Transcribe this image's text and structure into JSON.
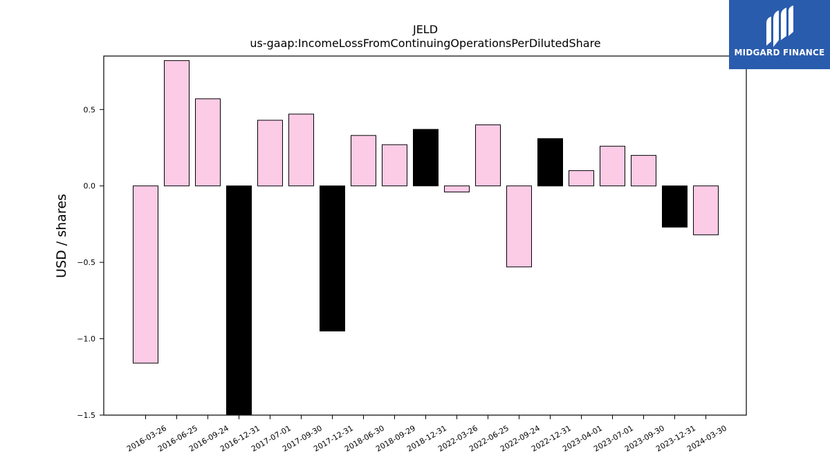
{
  "brand": {
    "name": "MIDGARD FINANCE",
    "background_color": "#2a5cad",
    "text_color": "#ffffff"
  },
  "chart_data": {
    "type": "bar",
    "title": "JELD",
    "subtitle": "us-gaap:IncomeLossFromContinuingOperationsPerDilutedShare",
    "xlabel": "",
    "ylabel": "USD / shares",
    "ylim": [
      -1.5,
      0.85
    ],
    "yticks": [
      {
        "value": 0.5,
        "label": "0.5"
      },
      {
        "value": 0.0,
        "label": "0.0"
      },
      {
        "value": -0.5,
        "label": "−0.5"
      },
      {
        "value": -1.0,
        "label": "−1.0"
      },
      {
        "value": -1.5,
        "label": "−1.5"
      }
    ],
    "grid": false,
    "legend": "none",
    "colors": {
      "quarterly": "#fccbe6",
      "annual": "#000000",
      "edge": "#000000"
    },
    "categories": [
      "2016-03-26",
      "2016-06-25",
      "2016-09-24",
      "2016-12-31",
      "2017-07-01",
      "2017-09-30",
      "2017-12-31",
      "2018-06-30",
      "2018-09-29",
      "2018-12-31",
      "2022-03-26",
      "2022-06-25",
      "2022-09-24",
      "2022-12-31",
      "2023-04-01",
      "2023-07-01",
      "2023-09-30",
      "2023-12-31",
      "2024-03-30"
    ],
    "values": [
      -1.16,
      0.82,
      0.57,
      -1.5,
      0.43,
      0.47,
      -0.95,
      0.33,
      0.27,
      0.37,
      -0.04,
      0.4,
      -0.53,
      0.31,
      0.1,
      0.26,
      0.2,
      -0.27,
      -0.32
    ],
    "highlight": [
      false,
      false,
      false,
      true,
      false,
      false,
      true,
      false,
      false,
      true,
      false,
      false,
      false,
      true,
      false,
      false,
      false,
      true,
      false
    ]
  }
}
